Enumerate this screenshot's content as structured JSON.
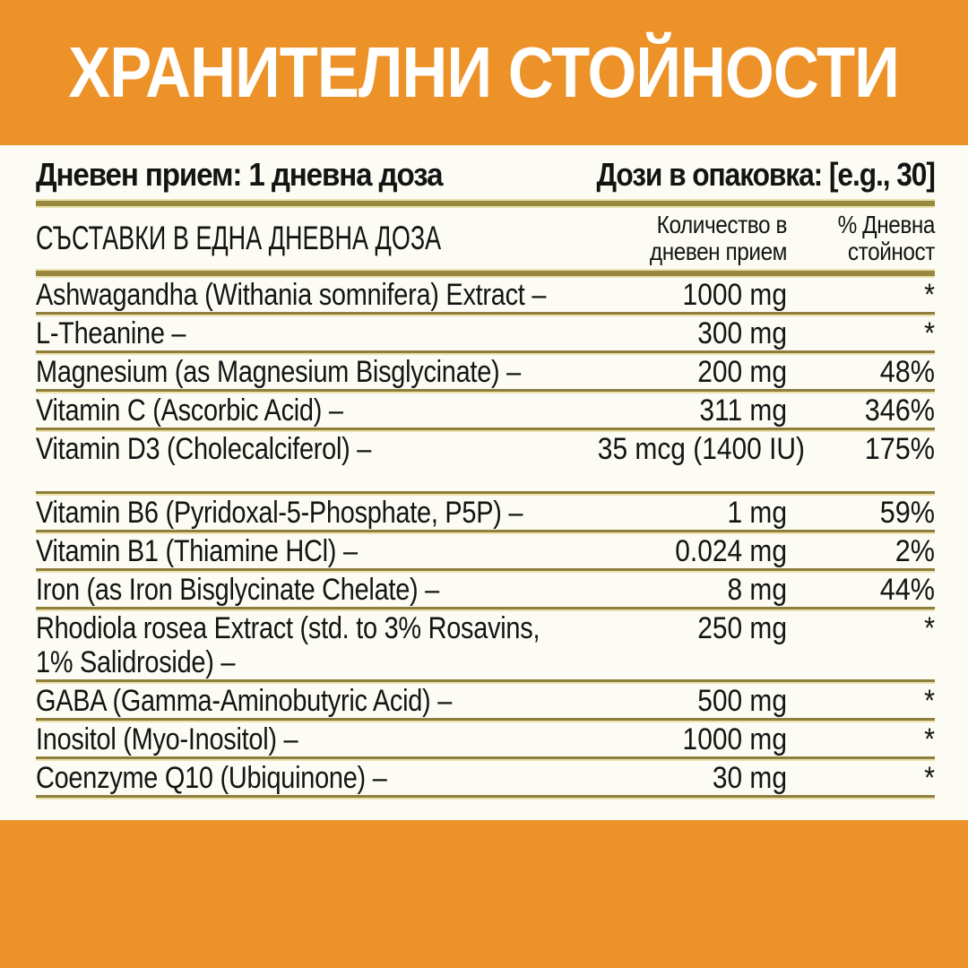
{
  "colors": {
    "background_orange": "#ED9229",
    "panel_white": "#FCFBF4",
    "divider_gold": "#97873F",
    "divider_light_edge": "#EBE2AF",
    "title_text": "#FFFFFF",
    "body_text": "#141414"
  },
  "header": {
    "title": "ХРАНИТЕЛНИ СТОЙНОСТИ"
  },
  "serving": {
    "daily_intake": "Дневен прием: 1 дневна доза",
    "servings_per_pack": "Дози в опаковка: [e.g., 30]"
  },
  "columns": {
    "ingredients": "СЪСТАВКИ В ЕДНА ДНЕВНА ДОЗА",
    "amount_line1": "Количество в",
    "amount_line2": "дневен прием",
    "dv_line1": "% Дневна",
    "dv_line2": "стойност"
  },
  "rows": [
    {
      "name": "Ashwagandha (Withania somnifera) Extract –",
      "amount": "1000 mg",
      "dv": "*"
    },
    {
      "name": "L-Theanine –",
      "amount": "300 mg",
      "dv": "*"
    },
    {
      "name": "Magnesium (as Magnesium Bisglycinate) –",
      "amount": "200 mg",
      "dv": "48%"
    },
    {
      "name": "Vitamin C (Ascorbic Acid) –",
      "amount": "311 mg",
      "dv": "346%"
    },
    {
      "name": "Vitamin D3 (Cholecalciferol) –",
      "amount": "35 mcg (1400 IU)",
      "dv": "175%"
    },
    {
      "name": "Vitamin B6 (Pyridoxal-5-Phosphate, P5P) –",
      "amount": "1 mg",
      "dv": "59%"
    },
    {
      "name": "Vitamin B1 (Thiamine HCl) –",
      "amount": "0.024 mg",
      "dv": "2%"
    },
    {
      "name": "Iron (as Iron Bisglycinate Chelate) –",
      "amount": "8 mg",
      "dv": "44%"
    },
    {
      "name": "Rhodiola rosea Extract (std. to 3% Rosavins,",
      "name2": "1% Salidroside) –",
      "amount": "250 mg",
      "dv": "*"
    },
    {
      "name": "GABA (Gamma-Aminobutyric Acid) –",
      "amount": "500 mg",
      "dv": "*"
    },
    {
      "name": "Inositol (Myo-Inositol) –",
      "amount": "1000 mg",
      "dv": "*"
    },
    {
      "name": "Coenzyme Q10 (Ubiquinone) –",
      "amount": "30 mg",
      "dv": "*"
    }
  ]
}
